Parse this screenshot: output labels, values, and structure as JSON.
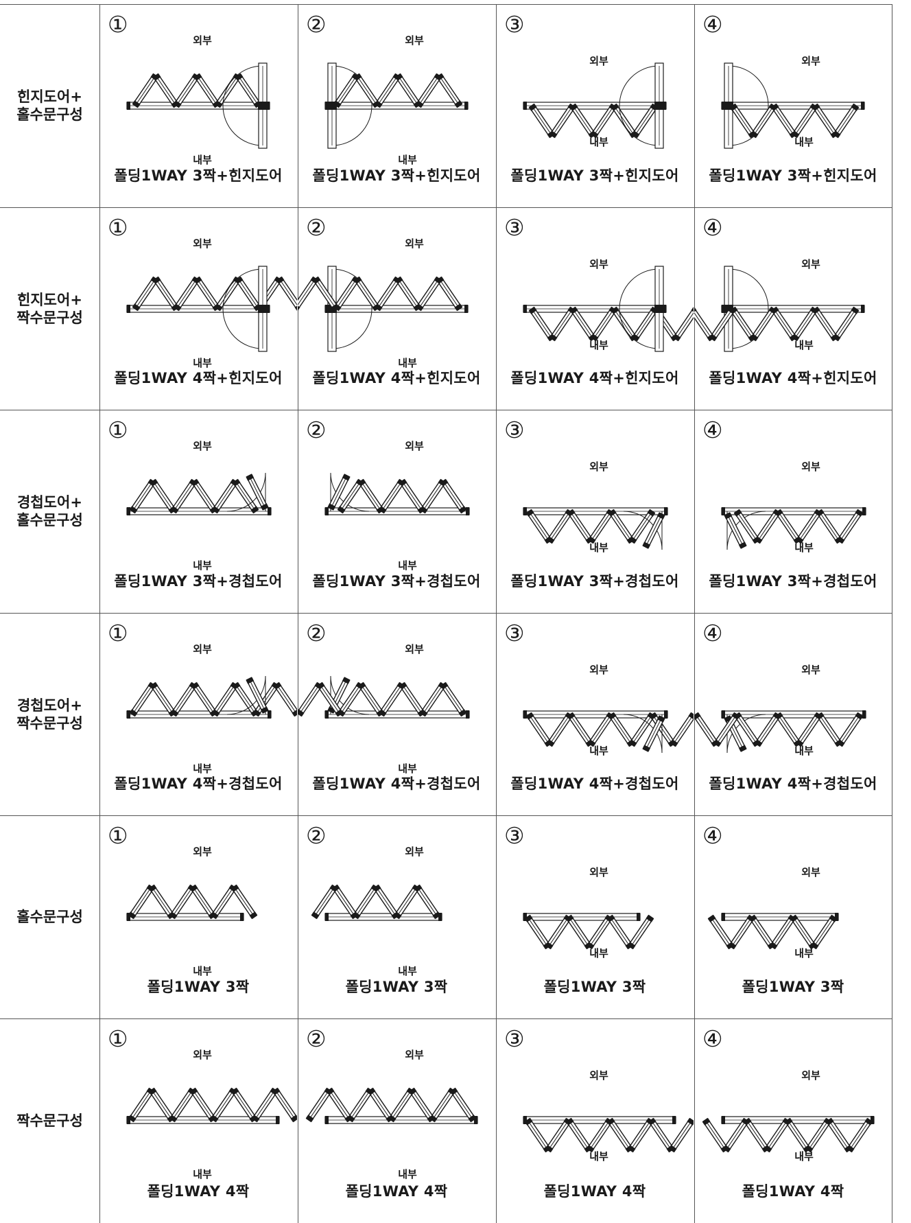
{
  "columns": 4,
  "rows": [
    {
      "label": "힌지도어+\n홀수문구성",
      "caption": "폴딩1WAY 3짝+힌지도어",
      "type": "hinge-odd"
    },
    {
      "label": "힌지도어+\n짝수문구성",
      "caption": "폴딩1WAY 4짝+힌지도어",
      "type": "hinge-even"
    },
    {
      "label": "경첩도어+\n홀수문구성",
      "caption": "폴딩1WAY 3짝+경첩도어",
      "type": "pivot-odd"
    },
    {
      "label": "경첩도어+\n짝수문구성",
      "caption": "폴딩1WAY 4짝+경첩도어",
      "type": "pivot-even"
    },
    {
      "label": "홀수문구성",
      "caption": "폴딩1WAY 3짝",
      "type": "odd"
    },
    {
      "label": "짝수문구성",
      "caption": "폴딩1WAY 4짝",
      "type": "even"
    }
  ],
  "variants": [
    "①",
    "②",
    "③",
    "④"
  ],
  "labels": {
    "outside": "외부",
    "inside": "내부"
  }
}
